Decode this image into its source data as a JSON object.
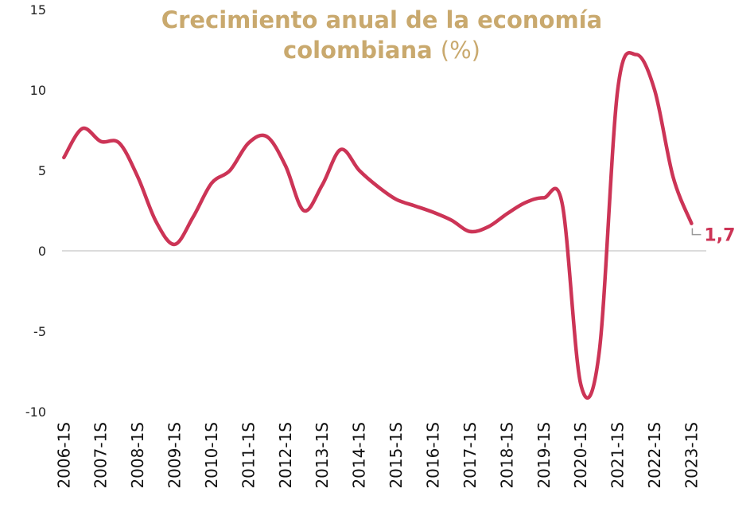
{
  "chart_data": {
    "type": "line",
    "title": "Crecimiento anual de la economía colombiana",
    "title_unit": "(%)",
    "ylim": [
      -10,
      15
    ],
    "yticks": [
      15,
      10,
      5,
      0,
      -5,
      -10
    ],
    "ytick_labels": [
      "15",
      "10",
      "5",
      "0",
      "-5",
      "-10"
    ],
    "xtick_labels": [
      "2006-1S",
      "2007-1S",
      "2008-1S",
      "2009-1S",
      "2010-1S",
      "2011-1S",
      "2012-1S",
      "2013-1S",
      "2014-1S",
      "2015-1S",
      "2016-1S",
      "2017-1S",
      "2018-1S",
      "2019-1S",
      "2020-1S",
      "2021-1S",
      "2022-1S",
      "2023-1S"
    ],
    "series": [
      {
        "color": "#cc3456",
        "x": [
          2006.0,
          2006.5,
          2007.0,
          2007.5,
          2008.0,
          2008.5,
          2009.0,
          2009.5,
          2010.0,
          2010.5,
          2011.0,
          2011.5,
          2012.0,
          2012.5,
          2013.0,
          2013.5,
          2014.0,
          2014.5,
          2015.0,
          2015.5,
          2016.0,
          2016.5,
          2017.0,
          2017.5,
          2018.0,
          2018.5,
          2019.0,
          2019.5,
          2020.0,
          2020.5,
          2021.0,
          2021.5,
          2022.0,
          2022.5,
          2023.0
        ],
        "values": [
          5.8,
          7.6,
          6.8,
          6.7,
          4.6,
          1.8,
          0.4,
          2.1,
          4.2,
          5.0,
          6.7,
          7.1,
          5.3,
          2.5,
          4.1,
          6.3,
          5.0,
          4.0,
          3.2,
          2.8,
          2.4,
          1.9,
          1.2,
          1.5,
          2.3,
          3.0,
          3.3,
          2.9,
          -8.3,
          -6.3,
          10.0,
          12.2,
          10.0,
          4.6,
          1.7
        ]
      }
    ],
    "end_label": "1,7",
    "zero_line": true,
    "grid": false
  }
}
